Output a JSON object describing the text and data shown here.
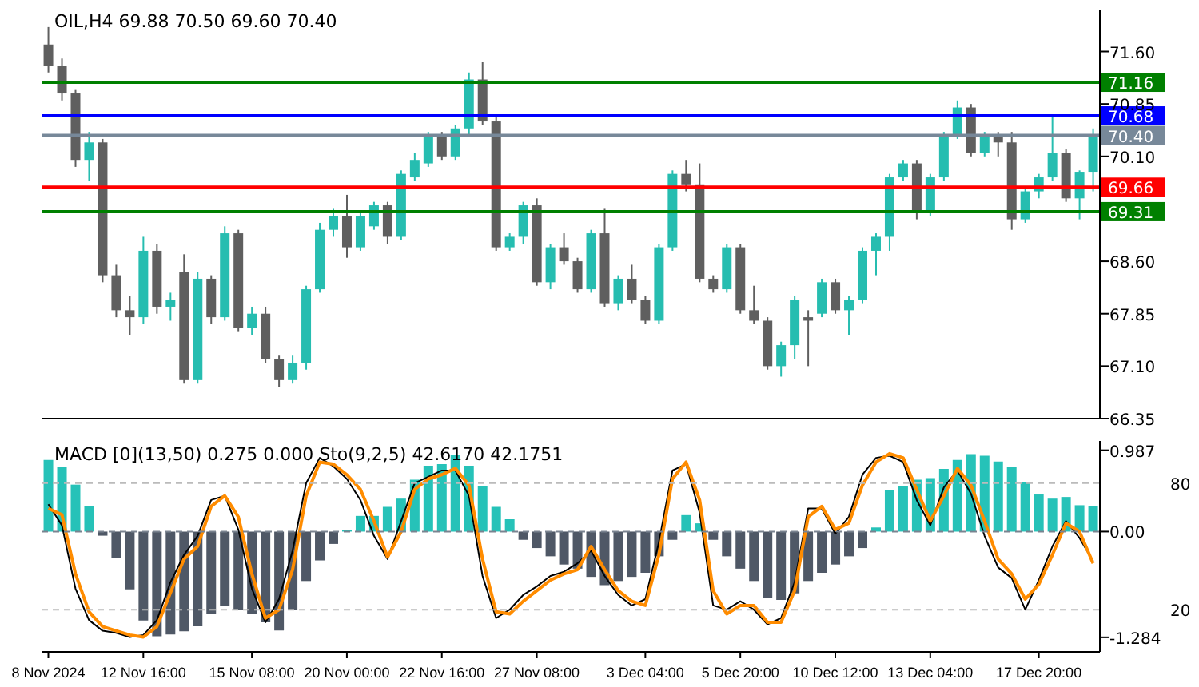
{
  "chart_data": [
    {
      "type": "candlestick",
      "title": "OIL,H4 69.88 70.50 69.60 70.40",
      "categories": [
        null,
        null,
        null,
        null,
        null,
        null,
        null,
        null,
        null,
        null,
        null,
        null,
        null,
        null,
        null,
        null,
        null,
        null,
        null,
        null,
        null,
        null,
        null,
        null,
        null,
        null,
        null,
        null,
        null,
        null,
        null,
        null,
        null,
        null,
        null,
        null,
        null,
        null,
        null,
        null,
        null,
        null,
        null,
        null,
        null,
        null,
        null,
        null,
        null,
        null,
        null,
        null,
        null,
        null,
        null,
        null,
        null,
        null,
        null,
        null,
        null,
        null,
        null,
        null,
        null,
        null,
        null,
        null,
        null,
        null,
        null,
        null,
        null,
        null,
        null,
        null,
        null,
        null
      ],
      "ohlc": [
        [
          71.7,
          71.95,
          71.3,
          71.4
        ],
        [
          71.4,
          71.5,
          70.9,
          71.0
        ],
        [
          71.0,
          71.05,
          69.95,
          70.05
        ],
        [
          70.05,
          70.45,
          69.75,
          70.3
        ],
        [
          70.3,
          70.35,
          68.3,
          68.4
        ],
        [
          68.4,
          68.55,
          67.8,
          67.9
        ],
        [
          67.9,
          68.1,
          67.55,
          67.8
        ],
        [
          67.8,
          68.95,
          67.7,
          68.75
        ],
        [
          68.75,
          68.85,
          67.85,
          67.95
        ],
        [
          67.95,
          68.15,
          67.75,
          68.05
        ],
        [
          68.45,
          68.7,
          66.85,
          66.9
        ],
        [
          66.9,
          68.45,
          66.85,
          68.35
        ],
        [
          68.35,
          68.4,
          67.7,
          67.8
        ],
        [
          67.8,
          69.1,
          67.75,
          69.0
        ],
        [
          69.0,
          69.05,
          67.6,
          67.65
        ],
        [
          67.65,
          67.95,
          67.55,
          67.85
        ],
        [
          67.85,
          67.95,
          67.15,
          67.2
        ],
        [
          67.2,
          67.25,
          66.8,
          66.9
        ],
        [
          66.9,
          67.25,
          66.85,
          67.15
        ],
        [
          67.15,
          68.25,
          67.05,
          68.2
        ],
        [
          68.2,
          69.15,
          68.15,
          69.05
        ],
        [
          69.05,
          69.35,
          68.95,
          69.25
        ],
        [
          69.25,
          69.55,
          68.65,
          68.8
        ],
        [
          68.8,
          69.3,
          68.75,
          69.25
        ],
        [
          69.1,
          69.45,
          69.05,
          69.4
        ],
        [
          69.4,
          69.45,
          68.85,
          68.95
        ],
        [
          68.95,
          69.9,
          68.9,
          69.85
        ],
        [
          69.8,
          70.15,
          69.75,
          70.05
        ],
        [
          70.0,
          70.45,
          69.95,
          70.4
        ],
        [
          70.4,
          70.45,
          70.05,
          70.1
        ],
        [
          70.1,
          70.55,
          70.05,
          70.5
        ],
        [
          70.5,
          71.3,
          70.4,
          71.2
        ],
        [
          71.2,
          71.45,
          70.55,
          70.6
        ],
        [
          70.6,
          70.7,
          68.75,
          68.8
        ],
        [
          68.8,
          69.0,
          68.75,
          68.95
        ],
        [
          68.95,
          69.45,
          68.85,
          69.4
        ],
        [
          69.4,
          69.5,
          68.25,
          68.3
        ],
        [
          68.3,
          68.85,
          68.2,
          68.8
        ],
        [
          68.8,
          69.0,
          68.55,
          68.6
        ],
        [
          68.6,
          68.65,
          68.15,
          68.2
        ],
        [
          68.2,
          69.05,
          68.15,
          69.0
        ],
        [
          69.0,
          69.35,
          67.95,
          68.0
        ],
        [
          68.0,
          68.4,
          67.9,
          68.35
        ],
        [
          68.35,
          68.55,
          68.0,
          68.05
        ],
        [
          68.05,
          68.1,
          67.7,
          67.75
        ],
        [
          67.75,
          68.85,
          67.7,
          68.8
        ],
        [
          68.8,
          69.9,
          68.75,
          69.85
        ],
        [
          69.85,
          70.05,
          69.6,
          69.7
        ],
        [
          69.7,
          70.0,
          68.3,
          68.35
        ],
        [
          68.35,
          68.4,
          68.15,
          68.2
        ],
        [
          68.2,
          68.85,
          68.15,
          68.8
        ],
        [
          68.8,
          68.85,
          67.85,
          67.9
        ],
        [
          67.9,
          68.25,
          67.7,
          67.75
        ],
        [
          67.75,
          67.8,
          67.05,
          67.1
        ],
        [
          67.1,
          67.45,
          66.95,
          67.4
        ],
        [
          67.4,
          68.1,
          67.2,
          68.05
        ],
        [
          67.8,
          67.9,
          67.1,
          67.75
        ],
        [
          67.85,
          68.35,
          67.8,
          68.3
        ],
        [
          68.3,
          68.35,
          67.85,
          67.9
        ],
        [
          67.9,
          68.1,
          67.55,
          68.05
        ],
        [
          68.05,
          68.8,
          68.0,
          68.75
        ],
        [
          68.75,
          69.0,
          68.4,
          68.95
        ],
        [
          68.95,
          69.85,
          68.75,
          69.8
        ],
        [
          69.8,
          70.05,
          69.75,
          70.0
        ],
        [
          70.0,
          70.05,
          69.2,
          69.3
        ],
        [
          69.3,
          69.85,
          69.25,
          69.8
        ],
        [
          69.8,
          70.45,
          69.75,
          70.4
        ],
        [
          70.4,
          70.9,
          70.35,
          70.8
        ],
        [
          70.8,
          70.85,
          70.1,
          70.15
        ],
        [
          70.15,
          70.45,
          70.1,
          70.4
        ],
        [
          70.4,
          70.45,
          70.1,
          70.3
        ],
        [
          70.3,
          70.45,
          69.05,
          69.2
        ],
        [
          69.2,
          69.65,
          69.15,
          69.6
        ],
        [
          69.6,
          69.85,
          69.5,
          69.8
        ],
        [
          69.8,
          70.7,
          69.75,
          70.15
        ],
        [
          70.15,
          70.2,
          69.45,
          69.5
        ],
        [
          69.5,
          69.9,
          69.2,
          69.88
        ],
        [
          69.88,
          70.5,
          69.6,
          70.4
        ]
      ],
      "colors": [
        "#5f5f5f",
        "#5f5f5f",
        "#5f5f5f",
        "#26bdb0",
        "#5f5f5f",
        "#5f5f5f",
        "#5f5f5f",
        "#26bdb0",
        "#5f5f5f",
        "#26bdb0",
        "#5f5f5f",
        "#26bdb0",
        "#5f5f5f",
        "#26bdb0",
        "#5f5f5f",
        "#26bdb0",
        "#5f5f5f",
        "#5f5f5f",
        "#26bdb0",
        "#26bdb0",
        "#26bdb0",
        "#26bdb0",
        "#5f5f5f",
        "#26bdb0",
        "#26bdb0",
        "#5f5f5f",
        "#26bdb0",
        "#26bdb0",
        "#26bdb0",
        "#5f5f5f",
        "#26bdb0",
        "#26bdb0",
        "#5f5f5f",
        "#5f5f5f",
        "#26bdb0",
        "#26bdb0",
        "#5f5f5f",
        "#26bdb0",
        "#5f5f5f",
        "#5f5f5f",
        "#26bdb0",
        "#5f5f5f",
        "#26bdb0",
        "#5f5f5f",
        "#5f5f5f",
        "#26bdb0",
        "#26bdb0",
        "#5f5f5f",
        "#5f5f5f",
        "#5f5f5f",
        "#26bdb0",
        "#5f5f5f",
        "#5f5f5f",
        "#5f5f5f",
        "#26bdb0",
        "#26bdb0",
        "#5f5f5f",
        "#26bdb0",
        "#5f5f5f",
        "#26bdb0",
        "#26bdb0",
        "#26bdb0",
        "#26bdb0",
        "#26bdb0",
        "#5f5f5f",
        "#26bdb0",
        "#26bdb0",
        "#26bdb0",
        "#5f5f5f",
        "#26bdb0",
        "#5f5f5f",
        "#5f5f5f",
        "#26bdb0",
        "#26bdb0",
        "#26bdb0",
        "#5f5f5f",
        "#26bdb0",
        "#26bdb0"
      ],
      "ylim": [
        66.35,
        72.2
      ],
      "yticks": [
        {
          "value": 66.35,
          "label": "66.35"
        },
        {
          "value": 67.1,
          "label": "67.10"
        },
        {
          "value": 67.85,
          "label": "67.85"
        },
        {
          "value": 68.6,
          "label": "68.60"
        },
        {
          "value": 70.1,
          "label": "70.10"
        },
        {
          "value": 70.85,
          "label": "70.85"
        },
        {
          "value": 71.6,
          "label": "71.60"
        }
      ],
      "ref_lines": [
        {
          "axis": "y",
          "value": 71.16,
          "label": "71.16",
          "color": "#008000"
        },
        {
          "axis": "y",
          "value": 70.68,
          "label": "70.68",
          "color": "#0000ff"
        },
        {
          "axis": "y",
          "value": 70.4,
          "label": "70.40",
          "color": "#778899"
        },
        {
          "axis": "y",
          "value": 69.66,
          "label": "69.66",
          "color": "#ff0000"
        },
        {
          "axis": "y",
          "value": 69.31,
          "label": "69.31",
          "color": "#008000"
        }
      ],
      "tick_labels": "y"
    },
    {
      "type": "bar",
      "title": "MACD [0](13,50) 0.275 0.000  Sto(9,2,5) 42.6170 42.1751",
      "categories": [
        "8 Nov 2024",
        null,
        null,
        null,
        null,
        null,
        null,
        "12 Nov 16:00",
        null,
        null,
        null,
        null,
        null,
        null,
        null,
        "15 Nov 08:00",
        null,
        null,
        null,
        null,
        null,
        null,
        "20 Nov 00:00",
        null,
        null,
        null,
        null,
        null,
        null,
        "22 Nov 16:00",
        null,
        null,
        null,
        null,
        null,
        null,
        "27 Nov 08:00",
        null,
        null,
        null,
        null,
        null,
        null,
        null,
        "3 Dec 04:00",
        null,
        null,
        null,
        null,
        null,
        null,
        "5 Dec 20:00",
        null,
        null,
        null,
        null,
        null,
        null,
        "10 Dec 12:00",
        null,
        null,
        null,
        null,
        null,
        null,
        "13 Dec 04:00",
        null,
        null,
        null,
        null,
        null,
        null,
        null,
        "17 Dec 20:00",
        null,
        null,
        null,
        null
      ],
      "series": [
        {
          "type": "bar",
          "values": [
            0.87,
            0.78,
            0.57,
            0.31,
            -0.05,
            -0.32,
            -0.7,
            -1.08,
            -1.27,
            -1.25,
            -1.21,
            -1.15,
            -1.0,
            -0.9,
            -0.95,
            -1.0,
            -1.1,
            -1.2,
            -0.95,
            -0.6,
            -0.35,
            -0.15,
            0.02,
            0.19,
            0.19,
            0.3,
            0.4,
            0.63,
            0.8,
            0.82,
            0.93,
            0.8,
            0.55,
            0.3,
            0.15,
            -0.1,
            -0.2,
            -0.3,
            -0.4,
            -0.45,
            -0.55,
            -0.65,
            -0.6,
            -0.55,
            -0.5,
            -0.3,
            -0.1,
            0.2,
            0.1,
            -0.1,
            -0.3,
            -0.45,
            -0.6,
            -0.8,
            -0.83,
            -0.75,
            -0.6,
            -0.5,
            -0.4,
            -0.3,
            -0.2,
            0.05,
            0.5,
            0.55,
            0.63,
            0.65,
            0.76,
            0.87,
            0.94,
            0.92,
            0.85,
            0.78,
            0.6,
            0.45,
            0.4,
            0.42,
            0.32,
            0.31
          ],
          "colors": [
            "#26c2b8",
            "#26c2b8",
            "#26c2b8",
            "#26c2b8",
            "#4f5866",
            "#4f5866",
            "#4f5866",
            "#4f5866",
            "#4f5866",
            "#4f5866",
            "#4f5866",
            "#4f5866",
            "#4f5866",
            "#4f5866",
            "#4f5866",
            "#4f5866",
            "#4f5866",
            "#4f5866",
            "#4f5866",
            "#4f5866",
            "#4f5866",
            "#4f5866",
            "#26c2b8",
            "#26c2b8",
            "#26c2b8",
            "#26c2b8",
            "#26c2b8",
            "#26c2b8",
            "#26c2b8",
            "#26c2b8",
            "#26c2b8",
            "#26c2b8",
            "#26c2b8",
            "#26c2b8",
            "#26c2b8",
            "#4f5866",
            "#4f5866",
            "#4f5866",
            "#4f5866",
            "#4f5866",
            "#4f5866",
            "#4f5866",
            "#4f5866",
            "#4f5866",
            "#4f5866",
            "#4f5866",
            "#4f5866",
            "#26c2b8",
            "#26c2b8",
            "#4f5866",
            "#4f5866",
            "#4f5866",
            "#4f5866",
            "#4f5866",
            "#4f5866",
            "#4f5866",
            "#4f5866",
            "#4f5866",
            "#4f5866",
            "#4f5866",
            "#4f5866",
            "#26c2b8",
            "#26c2b8",
            "#26c2b8",
            "#26c2b8",
            "#26c2b8",
            "#26c2b8",
            "#26c2b8",
            "#26c2b8",
            "#26c2b8",
            "#26c2b8",
            "#26c2b8",
            "#26c2b8",
            "#26c2b8",
            "#26c2b8",
            "#26c2b8",
            "#26c2b8",
            "#26c2b8"
          ]
        },
        {
          "type": "line",
          "axis": "y2",
          "color": "#000000",
          "values": [
            70,
            60,
            30,
            15,
            10,
            9,
            7,
            8,
            15,
            33,
            46,
            55,
            72,
            74,
            58,
            30,
            14,
            25,
            48,
            80,
            92,
            88,
            82,
            72,
            55,
            44,
            62,
            80,
            83,
            86,
            86,
            74,
            36,
            16,
            20,
            27,
            31,
            36,
            38,
            42,
            48,
            36,
            27,
            22,
            25,
            52,
            86,
            89,
            66,
            22,
            20,
            24,
            20,
            13,
            16,
            33,
            68,
            68,
            56,
            64,
            84,
            92,
            93,
            90,
            72,
            60,
            78,
            86,
            75,
            55,
            40,
            35,
            20,
            34,
            50,
            62,
            54,
            43
          ]
        },
        {
          "type": "line",
          "axis": "y2",
          "color": "#ff8c00",
          "values": [
            68,
            65,
            37,
            19,
            12,
            10,
            8,
            7,
            12,
            28,
            44,
            50,
            69,
            74,
            64,
            37,
            16,
            20,
            39,
            74,
            90,
            89,
            84,
            77,
            62,
            45,
            57,
            77,
            82,
            84,
            87,
            79,
            44,
            19,
            18,
            24,
            29,
            34,
            37,
            39,
            50,
            39,
            29,
            24,
            22,
            46,
            82,
            90,
            72,
            29,
            18,
            22,
            22,
            14,
            14,
            29,
            64,
            69,
            58,
            61,
            79,
            90,
            94,
            92,
            77,
            62,
            74,
            87,
            79,
            62,
            44,
            37,
            25,
            32,
            46,
            61,
            57,
            42
          ]
        }
      ],
      "ylim": [
        -1.46,
        1.1
      ],
      "yticks": [
        -1.284,
        {
          "value": 0,
          "label": "0.00"
        },
        0.987
      ],
      "y2lim": [
        0,
        100
      ],
      "y2ticks": [
        20,
        80
      ],
      "ref_lines": [
        {
          "axis": "y2",
          "value": 80,
          "color": "#bbbbbb",
          "line_style": "dashed"
        },
        {
          "axis": "y2",
          "value": 20,
          "color": "#bbbbbb",
          "line_style": "dashed"
        },
        {
          "axis": "y",
          "value": 0,
          "color": "#7a8390",
          "line_style": "dashed"
        }
      ]
    }
  ]
}
